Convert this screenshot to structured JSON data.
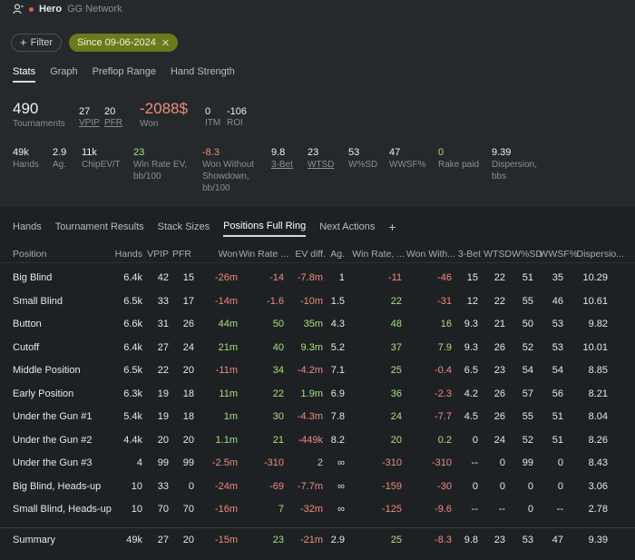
{
  "header": {
    "hero": "Hero",
    "network": "GG Network",
    "dot_color": "#e0604a"
  },
  "filters": {
    "filter_label": "Filter",
    "date_chip": "Since 09-06-2024",
    "date_close": "✕"
  },
  "main_tabs": [
    "Stats",
    "Graph",
    "Preflop Range",
    "Hand Strength"
  ],
  "big_stats": {
    "tournaments": {
      "value": "490",
      "label": "Tournaments"
    },
    "vpip": {
      "value": "27",
      "label": "VPIP"
    },
    "pfr": {
      "value": "20",
      "label": "PFR"
    },
    "won": {
      "value": "-2088$",
      "label": "Won"
    },
    "itm": {
      "value": "0",
      "label": "ITM"
    },
    "roi": {
      "value": "-106",
      "label": "ROI"
    }
  },
  "small_stats": [
    {
      "value": "49k",
      "label": "Hands"
    },
    {
      "value": "2.9",
      "label": "Ag."
    },
    {
      "value": "11k",
      "label": "ChipEV/T"
    },
    {
      "value": "23",
      "label": "Win Rate EV, bb/100"
    },
    {
      "value": "-8.3",
      "label": "Won Without Showdown, bb/100"
    },
    {
      "value": "9.8",
      "label": "3-Bet"
    },
    {
      "value": "23",
      "label": "WTSD"
    },
    {
      "value": "53",
      "label": "W%SD"
    },
    {
      "value": "47",
      "label": "WWSF%"
    },
    {
      "value": "0",
      "label": "Rake paid"
    },
    {
      "value": "9.39",
      "label": "Dispersion, bbs"
    }
  ],
  "sub_tabs": [
    "Hands",
    "Tournament Results",
    "Stack Sizes",
    "Positions Full Ring",
    "Next Actions"
  ],
  "sub_tab_add": "+",
  "table": {
    "columns": [
      "Position",
      "Hands",
      "VPIP",
      "PFR",
      "Won",
      "Win Rate ...",
      "EV diff.",
      "Ag.",
      "Win Rate, ...",
      "Won With...",
      "3-Bet",
      "WTSD",
      "W%SD",
      "WWSF%",
      "Dispersio..."
    ],
    "rows": [
      [
        "Big Blind",
        "6.4k",
        "42",
        "15",
        "-26m",
        "-14",
        "-7.8m",
        "1",
        "-11",
        "-46",
        "15",
        "22",
        "51",
        "35",
        "10.29"
      ],
      [
        "Small Blind",
        "6.5k",
        "33",
        "17",
        "-14m",
        "-1.6",
        "-10m",
        "1.5",
        "22",
        "-31",
        "12",
        "22",
        "55",
        "46",
        "10.61"
      ],
      [
        "Button",
        "6.6k",
        "31",
        "26",
        "44m",
        "50",
        "35m",
        "4.3",
        "48",
        "16",
        "9.3",
        "21",
        "50",
        "53",
        "9.82"
      ],
      [
        "Cutoff",
        "6.4k",
        "27",
        "24",
        "21m",
        "40",
        "9.3m",
        "5.2",
        "37",
        "7.9",
        "9.3",
        "26",
        "52",
        "53",
        "10.01"
      ],
      [
        "Middle Position",
        "6.5k",
        "22",
        "20",
        "-11m",
        "34",
        "-4.2m",
        "7.1",
        "25",
        "-0.4",
        "6.5",
        "23",
        "54",
        "54",
        "8.85"
      ],
      [
        "Early Position",
        "6.3k",
        "19",
        "18",
        "11m",
        "22",
        "1.9m",
        "6.9",
        "36",
        "-2.3",
        "4.2",
        "26",
        "57",
        "56",
        "8.21"
      ],
      [
        "Under the Gun #1",
        "5.4k",
        "19",
        "18",
        "1m",
        "30",
        "-4.3m",
        "7.8",
        "24",
        "-7.7",
        "4.5",
        "26",
        "55",
        "51",
        "8.04"
      ],
      [
        "Under the Gun #2",
        "4.4k",
        "20",
        "20",
        "1.1m",
        "21",
        "-449k",
        "8.2",
        "20",
        "0.2",
        "0",
        "24",
        "52",
        "51",
        "8.26"
      ],
      [
        "Under the Gun #3",
        "4",
        "99",
        "99",
        "-2.5m",
        "-310",
        "2",
        "∞",
        "-310",
        "-310",
        "--",
        "0",
        "99",
        "0",
        "8.43"
      ],
      [
        "Big Blind, Heads-up",
        "10",
        "33",
        "0",
        "-24m",
        "-69",
        "-7.7m",
        "∞",
        "-159",
        "-30",
        "0",
        "0",
        "0",
        "0",
        "3.06"
      ],
      [
        "Small Blind, Heads-up",
        "10",
        "70",
        "70",
        "-16m",
        "7",
        "-32m",
        "∞",
        "-125",
        "-9.6",
        "--",
        "--",
        "0",
        "--",
        "2.78"
      ]
    ],
    "summary": [
      "Summary",
      "49k",
      "27",
      "20",
      "-15m",
      "23",
      "-21m",
      "2.9",
      "25",
      "-8.3",
      "9.8",
      "23",
      "53",
      "47",
      "9.39"
    ]
  },
  "colors": {
    "negative": "#f08a7a",
    "positive": "#a8e07a",
    "chip": "#6b7a1a"
  }
}
